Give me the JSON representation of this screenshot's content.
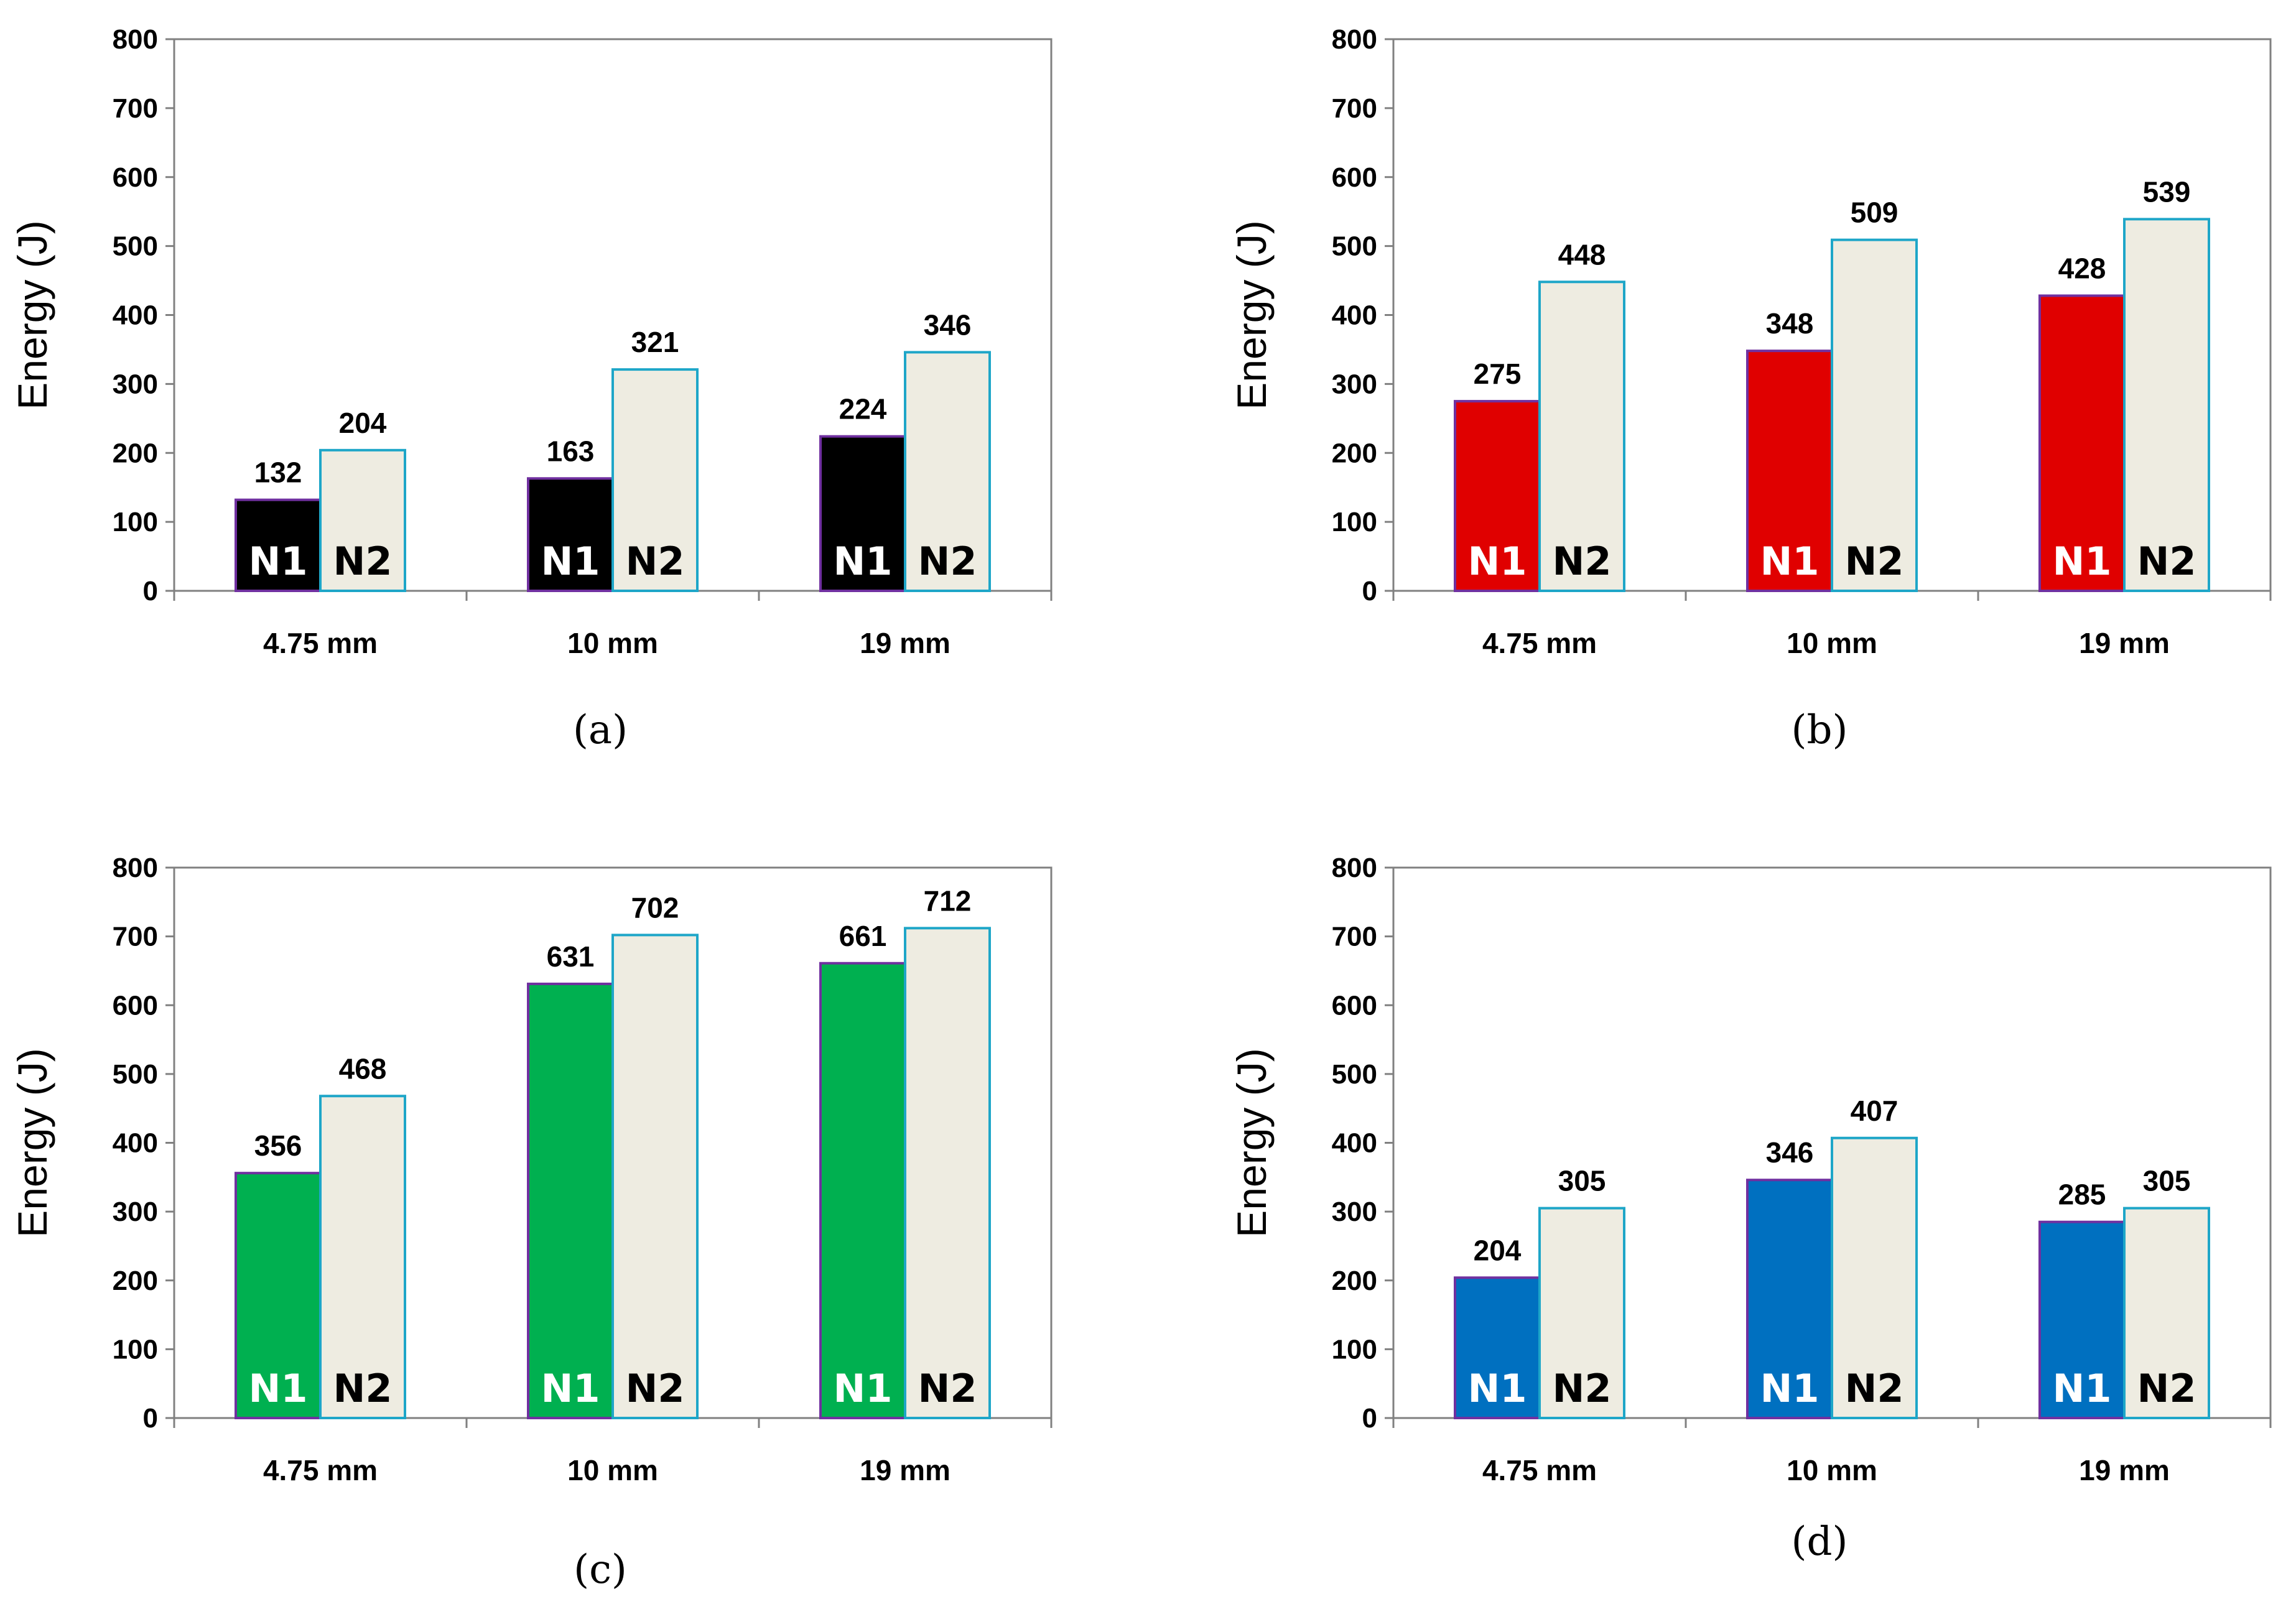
{
  "figure": {
    "panels": [
      "(a)",
      "(b)",
      "(c)",
      "(d)"
    ]
  },
  "chart_data": [
    {
      "type": "bar",
      "panel_label": "(a)",
      "categories": [
        "4.75 mm",
        "10 mm",
        "19 mm"
      ],
      "ylabel": "Energy (J)",
      "xlabel": "",
      "ylim": [
        0,
        800
      ],
      "yticks": [
        "0",
        "100",
        "200",
        "300",
        "400",
        "500",
        "600",
        "700",
        "800"
      ],
      "series": [
        {
          "name": "N1",
          "values": [
            132,
            163,
            224
          ],
          "color": "#000000",
          "edge": "#7030A0",
          "label_color": "#ffffff"
        },
        {
          "name": "N2",
          "values": [
            204,
            321,
            346
          ],
          "color": "#EEECE1",
          "edge": "#1EA6C8",
          "label_color": "#000000"
        }
      ]
    },
    {
      "type": "bar",
      "panel_label": "(b)",
      "categories": [
        "4.75 mm",
        "10 mm",
        "19 mm"
      ],
      "ylabel": "Energy (J)",
      "xlabel": "",
      "ylim": [
        0,
        800
      ],
      "yticks": [
        "0",
        "100",
        "200",
        "300",
        "400",
        "500",
        "600",
        "700",
        "800"
      ],
      "series": [
        {
          "name": "N1",
          "values": [
            275,
            348,
            428
          ],
          "color": "#E00000",
          "edge": "#7030A0",
          "label_color": "#ffffff"
        },
        {
          "name": "N2",
          "values": [
            448,
            509,
            539
          ],
          "color": "#EEECE1",
          "edge": "#1EA6C8",
          "label_color": "#000000"
        }
      ]
    },
    {
      "type": "bar",
      "panel_label": "(c)",
      "categories": [
        "4.75 mm",
        "10 mm",
        "19 mm"
      ],
      "ylabel": "Energy (J)",
      "xlabel": "",
      "ylim": [
        0,
        800
      ],
      "yticks": [
        "0",
        "100",
        "200",
        "300",
        "400",
        "500",
        "600",
        "700",
        "800"
      ],
      "series": [
        {
          "name": "N1",
          "values": [
            356,
            631,
            661
          ],
          "color": "#00B050",
          "edge": "#7030A0",
          "label_color": "#ffffff"
        },
        {
          "name": "N2",
          "values": [
            468,
            702,
            712
          ],
          "color": "#EEECE1",
          "edge": "#1EA6C8",
          "label_color": "#000000"
        }
      ]
    },
    {
      "type": "bar",
      "panel_label": "(d)",
      "categories": [
        "4.75 mm",
        "10 mm",
        "19 mm"
      ],
      "ylabel": "Energy (J)",
      "xlabel": "",
      "ylim": [
        0,
        800
      ],
      "yticks": [
        "0",
        "100",
        "200",
        "300",
        "400",
        "500",
        "600",
        "700",
        "800"
      ],
      "series": [
        {
          "name": "N1",
          "values": [
            204,
            346,
            285
          ],
          "color": "#0070C0",
          "edge": "#7030A0",
          "label_color": "#ffffff"
        },
        {
          "name": "N2",
          "values": [
            305,
            407,
            305
          ],
          "color": "#EEECE1",
          "edge": "#1EA6C8",
          "label_color": "#000000"
        }
      ]
    }
  ]
}
